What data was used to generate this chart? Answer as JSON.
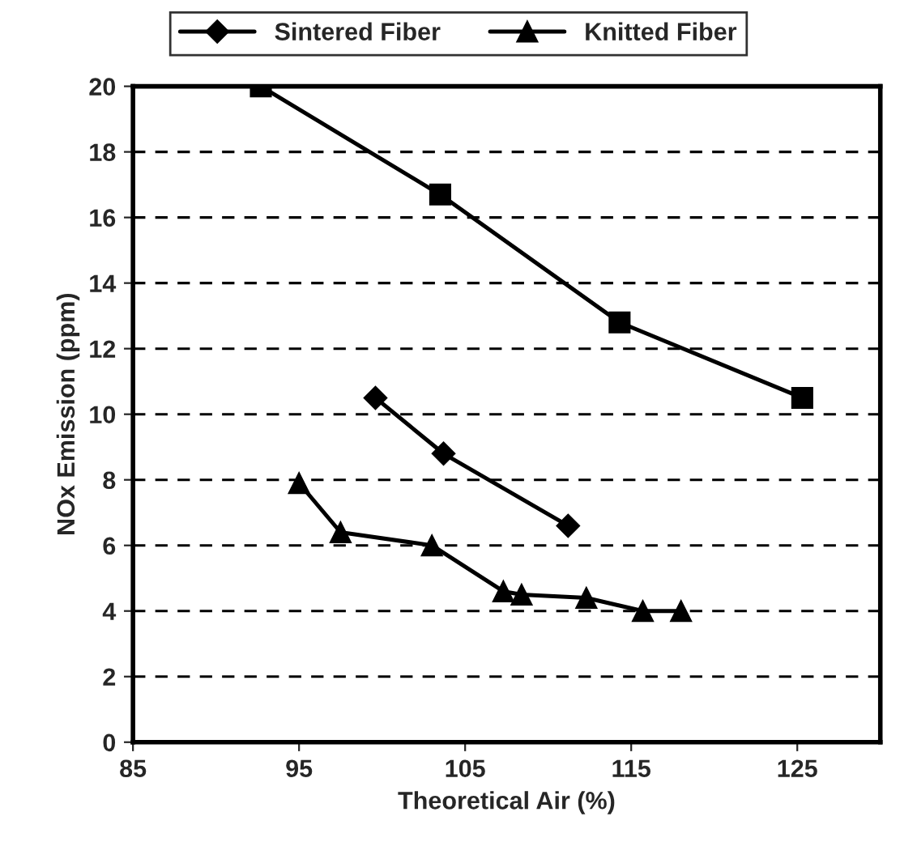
{
  "chart_data": {
    "type": "line",
    "xlabel": "Theoretical Air (%)",
    "ylabel": "NOx Emission (ppm)",
    "xlim": [
      85,
      130
    ],
    "xticks": [
      85,
      95,
      105,
      115,
      125
    ],
    "ylim": [
      0,
      20
    ],
    "yticks": [
      0,
      2,
      4,
      6,
      8,
      10,
      12,
      14,
      16,
      18,
      20
    ],
    "grid": "y",
    "legend": "top",
    "line_style": "solid",
    "series": [
      {
        "color": "#000000",
        "marker": "square",
        "x": [
          92.7,
          103.5,
          114.3,
          125.3
        ],
        "values": [
          20,
          16.7,
          12.8,
          10.5
        ]
      },
      {
        "name": "Sintered Fiber",
        "color": "#000000",
        "marker": "diamond",
        "x": [
          99.6,
          103.7,
          111.2
        ],
        "values": [
          10.5,
          8.8,
          6.6
        ]
      },
      {
        "name": "Knitted Fiber",
        "color": "#000000",
        "marker": "triangle",
        "x": [
          95.0,
          97.5,
          103.0,
          107.3,
          108.4,
          112.3,
          115.7,
          118.0
        ],
        "values": [
          7.9,
          6.4,
          6.0,
          4.6,
          4.5,
          4.4,
          4.0,
          4.0
        ]
      }
    ]
  }
}
